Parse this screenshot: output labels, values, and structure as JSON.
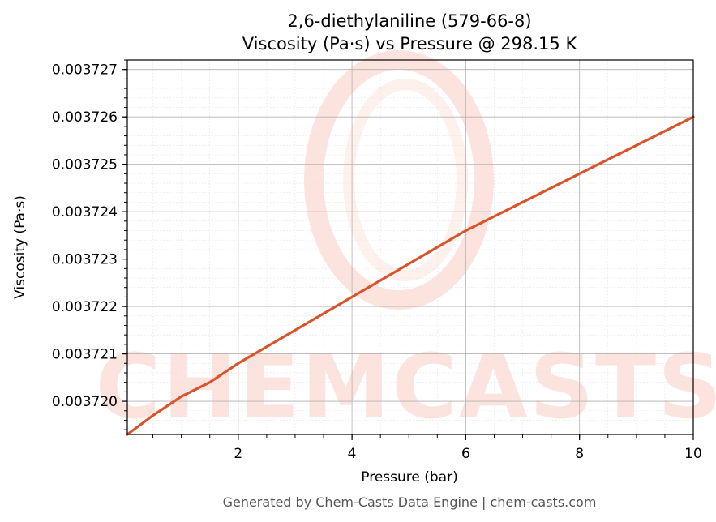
{
  "chart_data": {
    "type": "line",
    "title": "2,6-diethylaniline (579-66-8)",
    "subtitle": "Viscosity (Pa·s) vs Pressure @ 298.15 K",
    "xlabel": "Pressure (bar)",
    "ylabel": "Viscosity (Pa·s)",
    "xlim": [
      0.05,
      10.0
    ],
    "ylim": [
      0.0037193,
      0.0037272
    ],
    "x_ticks": [
      2,
      4,
      6,
      8,
      10
    ],
    "x_tick_labels": [
      "2",
      "4",
      "6",
      "8",
      "10"
    ],
    "y_ticks": [
      0.00372,
      0.003721,
      0.003722,
      0.003723,
      0.003724,
      0.003725,
      0.003726,
      0.003727
    ],
    "y_tick_labels": [
      "0.003720",
      "0.003721",
      "0.003722",
      "0.003723",
      "0.003724",
      "0.003725",
      "0.003726",
      "0.003727"
    ],
    "grid": true,
    "series": [
      {
        "color": "#d9542b",
        "x": [
          0.05,
          0.5,
          1.0,
          1.5,
          2.0,
          3.0,
          4.0,
          5.0,
          6.0,
          7.0,
          8.0,
          9.0,
          10.0
        ],
        "y": [
          0.0037193,
          0.0037197,
          0.0037201,
          0.0037204,
          0.0037208,
          0.0037215,
          0.0037222,
          0.0037229,
          0.0037236,
          0.0037242,
          0.0037248,
          0.0037254,
          0.003726
        ]
      }
    ]
  },
  "watermark": {
    "text": "CHEMCASTS",
    "color": "#fde3dd"
  },
  "footer": "Generated by Chem-Casts Data Engine | chem-casts.com"
}
